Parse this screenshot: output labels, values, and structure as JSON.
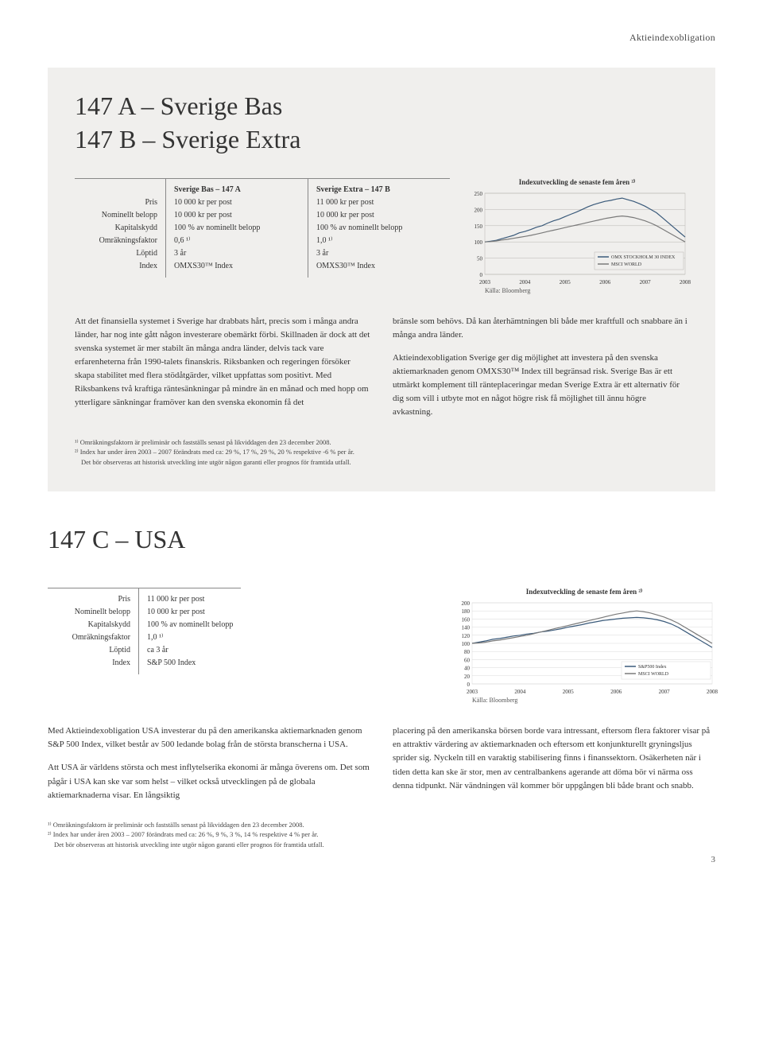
{
  "header": {
    "category": "Aktieindexobligation"
  },
  "section1": {
    "title_line1": "147 A – Sverige Bas",
    "title_line2": "147 B – Sverige Extra",
    "table": {
      "labels": [
        "Pris",
        "Nominellt belopp",
        "Kapitalskydd",
        "Omräkningsfaktor",
        "Löptid",
        "Index"
      ],
      "col1": {
        "header": "Sverige Bas – 147 A",
        "rows": [
          "10 000 kr per post",
          "10 000 kr per post",
          "100 % av nominellt belopp",
          "0,6 ¹⁾",
          "3 år",
          "OMXS30™ Index"
        ]
      },
      "col2": {
        "header": "Sverige Extra – 147 B",
        "rows": [
          "11 000 kr per post",
          "10 000 kr per post",
          "100 % av nominellt belopp",
          "1,0 ¹⁾",
          "3 år",
          "OMXS30™ Index"
        ]
      }
    },
    "chart": {
      "title": "Indexutveckling de senaste fem åren ²⁾",
      "ylim": [
        0,
        250
      ],
      "ytick_step": 50,
      "yticks": [
        "0",
        "50",
        "100",
        "150",
        "200",
        "250"
      ],
      "xticks": [
        "2003",
        "2004",
        "2005",
        "2006",
        "2007",
        "2008"
      ],
      "series": [
        {
          "name": "OMX STOCKHOLM 30 INDEX",
          "color": "#3a5a7a",
          "points": [
            100,
            102,
            105,
            110,
            115,
            120,
            128,
            132,
            138,
            145,
            150,
            158,
            165,
            170,
            178,
            185,
            192,
            200,
            208,
            215,
            220,
            225,
            228,
            232,
            235,
            230,
            225,
            218,
            210,
            200,
            190,
            175,
            160,
            145,
            130,
            115
          ]
        },
        {
          "name": "MSCI WORLD",
          "color": "#7a7a7a",
          "points": [
            100,
            101,
            103,
            106,
            108,
            111,
            114,
            117,
            120,
            124,
            128,
            132,
            136,
            140,
            144,
            148,
            152,
            156,
            160,
            164,
            168,
            172,
            175,
            178,
            180,
            178,
            175,
            170,
            165,
            158,
            150,
            140,
            130,
            120,
            110,
            100
          ]
        }
      ],
      "source": "Källa: Bloomberg",
      "bg": "#f0efed",
      "grid": "#b8b6b2"
    },
    "body_left": "Att det finansiella systemet i Sverige har drabbats hårt, precis som i många andra länder, har nog inte gått någon investerare obemärkt förbi. Skillnaden är dock att det svenska systemet är mer stabilt än många andra länder, delvis tack vare erfarenheterna från 1990-talets finanskris. Riksbanken och regeringen försöker skapa stabilitet med flera stödåtgärder, vilket uppfattas som positivt. Med Riksbankens två kraftiga räntesänkningar på mindre än en månad och med hopp om ytterligare sänkningar framöver kan den svenska ekonomin få det",
    "body_right": "bränsle som behövs. Då kan återhämtningen bli både mer kraftfull och snabbare än i många andra länder.\n\nAktieindexobligation Sverige ger dig möjlighet att investera på den svenska aktiemarknaden genom OMXS30™ Index till begränsad risk. Sverige Bas är ett utmärkt komplement till ränteplaceringar medan Sverige Extra är ett alternativ för dig som vill i utbyte mot en något högre risk få möjlighet till ännu högre avkastning.",
    "footnote1": "¹⁾ Omräkningsfaktorn är preliminär och fastställs senast på likviddagen den 23 december 2008.",
    "footnote2": "²⁾ Index har under åren 2003 – 2007 förändrats med ca: 29 %, 17 %, 29 %, 20 % respektive -6 % per år.",
    "footnote3": "Det bör observeras att historisk utveckling inte utgör någon garanti eller prognos för framtida utfall."
  },
  "section2": {
    "title": "147 C – USA",
    "table": {
      "labels": [
        "Pris",
        "Nominellt belopp",
        "Kapitalskydd",
        "Omräkningsfaktor",
        "Löptid",
        "Index"
      ],
      "col1": {
        "rows": [
          "11 000 kr per post",
          "10 000 kr per post",
          "100 % av nominellt belopp",
          "1,0 ¹⁾",
          "ca 3 år",
          "S&P 500 Index"
        ]
      }
    },
    "chart": {
      "title": "Indexutveckling de senaste fem åren ²⁾",
      "ylim": [
        0,
        200
      ],
      "ytick_step": 20,
      "yticks": [
        "0",
        "20",
        "40",
        "60",
        "80",
        "100",
        "120",
        "140",
        "160",
        "180",
        "200"
      ],
      "xticks": [
        "2003",
        "2004",
        "2005",
        "2006",
        "2007",
        "2008"
      ],
      "series": [
        {
          "name": "S&P500 Index",
          "color": "#3a5a7a",
          "points": [
            100,
            103,
            106,
            110,
            112,
            115,
            118,
            120,
            123,
            125,
            128,
            130,
            133,
            136,
            140,
            143,
            146,
            150,
            153,
            156,
            158,
            160,
            162,
            163,
            164,
            163,
            161,
            158,
            154,
            148,
            140,
            130,
            120,
            110,
            100,
            90
          ]
        },
        {
          "name": "MSCI WORLD",
          "color": "#7a7a7a",
          "points": [
            100,
            101,
            103,
            106,
            108,
            111,
            114,
            117,
            120,
            124,
            128,
            132,
            136,
            140,
            144,
            148,
            152,
            156,
            160,
            164,
            168,
            172,
            175,
            178,
            180,
            178,
            175,
            170,
            165,
            158,
            150,
            140,
            130,
            120,
            110,
            100
          ]
        }
      ],
      "source": "Källa: Bloomberg",
      "bg": "#ffffff",
      "grid": "#d8d8d8"
    },
    "body_left": "Med Aktieindexobligation USA investerar du på den amerikanska aktiemarknaden genom S&P 500 Index, vilket består av 500 ledande bolag från de största branscherna i USA.\n\nAtt USA är världens största och mest inflytelserika ekonomi är många överens om. Det som pågår i USA kan ske var som helst – vilket också utvecklingen på de globala aktiemarknaderna visar. En långsiktig",
    "body_right": "placering på den amerikanska börsen borde vara intressant, eftersom flera faktorer visar på en attraktiv värdering av aktiemarknaden och eftersom ett konjunkturellt gryningsljus sprider sig. Nyckeln till en varaktig stabilisering finns i finanssektorn. Osäkerheten när i tiden detta kan ske är stor, men av centralbankens agerande att döma bör vi närma oss denna tidpunkt. När vändningen väl kommer bör uppgången bli både brant och snabb.",
    "footnote1": "¹⁾ Omräkningsfaktorn är preliminär och fastställs senast på likviddagen den 23 december 2008.",
    "footnote2": "²⁾ Index har under åren 2003 – 2007 förändrats med ca: 26 %, 9 %, 3 %, 14 % respektive 4 % per år.",
    "footnote3": "Det bör observeras att historisk utveckling inte utgör någon garanti eller prognos för framtida utfall."
  },
  "page_number": "3"
}
